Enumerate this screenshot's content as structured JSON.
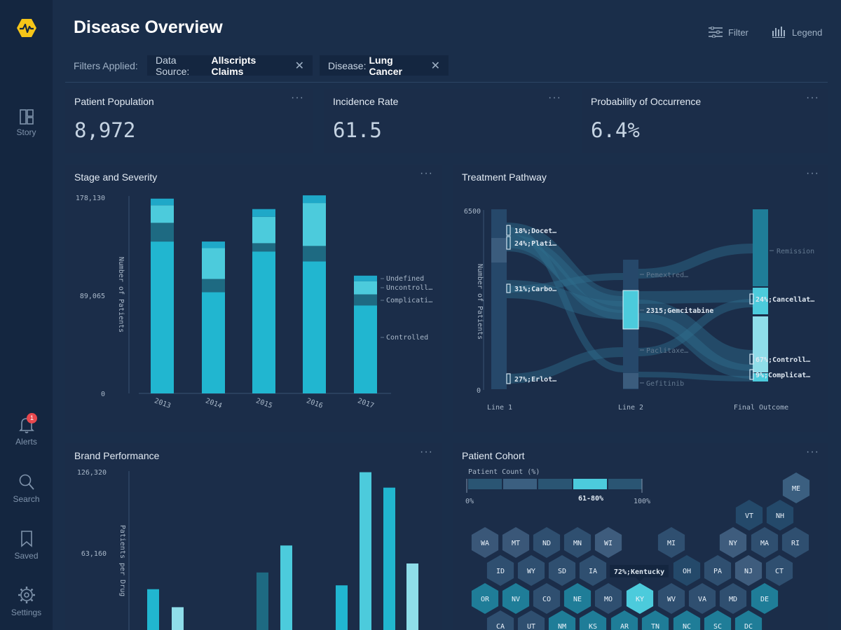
{
  "sidebar": {
    "items": [
      {
        "label": "Story",
        "icon": "story-icon"
      },
      {
        "label": "Alerts",
        "icon": "bell-icon",
        "badge": "1"
      },
      {
        "label": "Search",
        "icon": "search-icon"
      },
      {
        "label": "Saved",
        "icon": "bookmark-icon"
      },
      {
        "label": "Settings",
        "icon": "gear-icon"
      }
    ]
  },
  "header": {
    "title": "Disease Overview",
    "filter_label": "Filter",
    "legend_label": "Legend",
    "filters_applied_label": "Filters Applied:",
    "chips": [
      {
        "key": "Data Source:",
        "value": "Allscripts Claims"
      },
      {
        "key": "Disease:",
        "value": "Lung Cancer"
      }
    ]
  },
  "kpis": [
    {
      "title": "Patient Population",
      "value": "8,972"
    },
    {
      "title": "Incidence Rate",
      "value": "61.5"
    },
    {
      "title": "Probability of Occurrence",
      "value": "6.4%"
    }
  ],
  "colors": {
    "controlled": "#21b6d0",
    "complications": "#1e6a82",
    "uncontrolled": "#4ccbdc",
    "undefined": "#1fa8c8",
    "accent": "#f5c518"
  },
  "panels": {
    "stage": "Stage and Severity",
    "pathway": "Treatment Pathway",
    "brand": "Brand Performance",
    "cohort": "Patient Cohort"
  },
  "chart_data": [
    {
      "type": "bar",
      "title": "Stage and Severity",
      "ylabel": "Number of Patients",
      "ylim": [
        0,
        178130
      ],
      "y_ticks": [
        "178,130",
        "89,065",
        "0"
      ],
      "categories": [
        "2013",
        "2014",
        "2015",
        "2016",
        "2017"
      ],
      "series": [
        {
          "name": "Controlled",
          "values": [
            138000,
            92000,
            129000,
            120000,
            80000
          ]
        },
        {
          "name": "Complicati…",
          "values": [
            17000,
            12000,
            7500,
            14000,
            10000
          ]
        },
        {
          "name": "Uncontroll…",
          "values": [
            16000,
            28000,
            24000,
            39000,
            12000
          ]
        },
        {
          "name": "Undefined",
          "values": [
            6000,
            6000,
            7000,
            7000,
            5000
          ]
        }
      ],
      "legend": "right"
    },
    {
      "type": "sankey",
      "title": "Treatment Pathway",
      "ylabel": "Number of Patients",
      "y_ticks": [
        "6500",
        "0"
      ],
      "stages": [
        "Line 1",
        "Line 2",
        "Final Outcome"
      ],
      "line1": [
        {
          "label": "18%;Docet…"
        },
        {
          "label": "24%;Plati…"
        },
        {
          "label": "31%;Carbo…"
        },
        {
          "label": "27%;Erlot…"
        }
      ],
      "line2": [
        {
          "label": "Pemextred…"
        },
        {
          "label": "2315;Gemcitabine"
        },
        {
          "label": "Paclitaxe…"
        },
        {
          "label": "Gefitinib"
        }
      ],
      "outcome": [
        {
          "label": "Remission"
        },
        {
          "label": "24%;Cancellat…"
        },
        {
          "label": "67%;Controll…"
        },
        {
          "label": "9%;Complicat…"
        }
      ]
    },
    {
      "type": "bar",
      "title": "Brand Performance",
      "ylabel": "Patients per Drug",
      "ylim": [
        0,
        126320
      ],
      "y_ticks": [
        "126,320",
        "63,160"
      ],
      "values": [
        35000,
        21000,
        48000,
        69000,
        38000,
        126000,
        114000,
        55000
      ]
    }
  ],
  "cohort": {
    "legend_title": "Patient Count (%)",
    "legend_min": "0%",
    "legend_max": "100%",
    "legend_selected": "61-80%",
    "tooltip": "72%;Kentucky",
    "states": [
      "ME",
      "VT",
      "NH",
      "WA",
      "MT",
      "ND",
      "MN",
      "WI",
      "MI",
      "NY",
      "MA",
      "RI",
      "ID",
      "WY",
      "SD",
      "IA",
      "OH",
      "PA",
      "NJ",
      "CT",
      "OR",
      "NV",
      "CO",
      "NE",
      "MO",
      "KY",
      "WV",
      "VA",
      "MD",
      "DE",
      "CA",
      "UT",
      "NM",
      "KS",
      "AR",
      "TN",
      "NC",
      "SC",
      "DC"
    ]
  }
}
